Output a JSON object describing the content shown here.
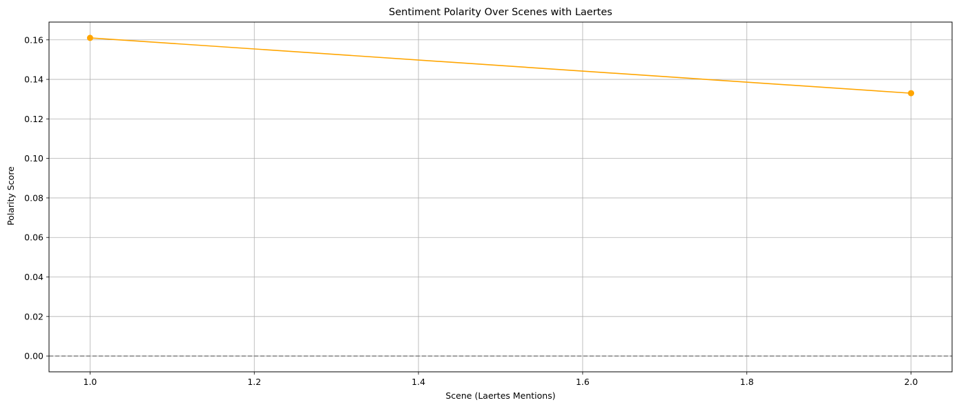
{
  "chart_data": {
    "type": "line",
    "title": "Sentiment Polarity Over Scenes with Laertes",
    "xlabel": "Scene (Laertes Mentions)",
    "ylabel": "Polarity Score",
    "xlim": [
      0.95,
      2.05
    ],
    "ylim": [
      -0.008,
      0.169
    ],
    "xticks": [
      1.0,
      1.2,
      1.4,
      1.6,
      1.8,
      2.0
    ],
    "xtick_labels": [
      "1.0",
      "1.2",
      "1.4",
      "1.6",
      "1.8",
      "2.0"
    ],
    "yticks": [
      0.0,
      0.02,
      0.04,
      0.06,
      0.08,
      0.1,
      0.12,
      0.14,
      0.16
    ],
    "ytick_labels": [
      "0.00",
      "0.02",
      "0.04",
      "0.06",
      "0.08",
      "0.10",
      "0.12",
      "0.14",
      "0.16"
    ],
    "grid": true,
    "reference_line": {
      "y": 0.0,
      "style": "dashed",
      "color": "#808080"
    },
    "series": [
      {
        "x": [
          1.0,
          2.0
        ],
        "y": [
          0.161,
          0.133
        ],
        "color": "#FFA500",
        "marker": "circle"
      }
    ]
  }
}
